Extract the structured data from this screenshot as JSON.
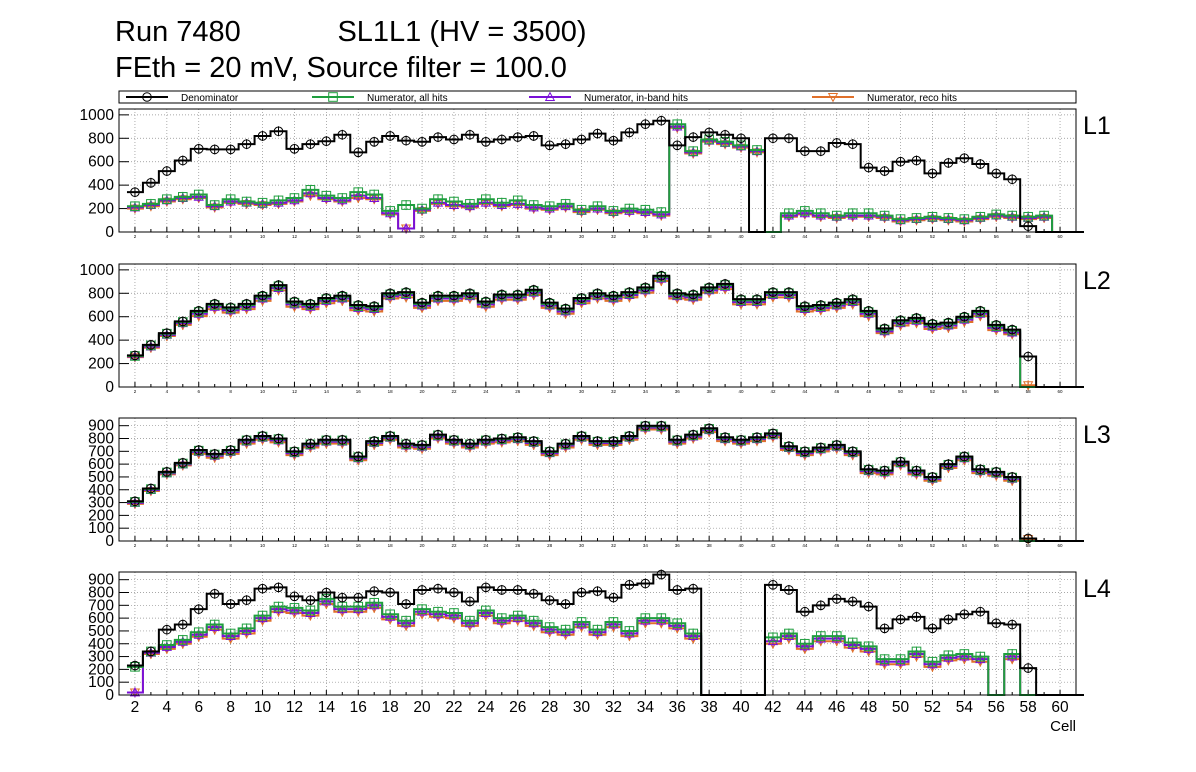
{
  "header": {
    "title_line1": "Run 7480            SL1L1 (HV = 3500)",
    "title_line2": "FEth = 20 mV, Source filter = 100.0"
  },
  "colors": {
    "denominator": "#000000",
    "all_hits": "#1f9e3e",
    "inband_hits": "#7a10d8",
    "reco_hits": "#e0702a"
  },
  "chart_data": {
    "type": "step-histogram",
    "xlabel": "Cell",
    "xlim": [
      1,
      61
    ],
    "x_major_ticks": [
      2,
      4,
      6,
      8,
      10,
      12,
      14,
      16,
      18,
      20,
      22,
      24,
      26,
      28,
      30,
      32,
      34,
      36,
      38,
      40,
      42,
      44,
      46,
      48,
      50,
      52,
      54,
      56,
      58,
      60
    ],
    "legend": [
      {
        "name": "Denominator",
        "marker": "circle"
      },
      {
        "name": "Numerator, all hits",
        "marker": "square"
      },
      {
        "name": "Numerator, in-band hits",
        "marker": "triangle-up"
      },
      {
        "name": "Numerator, reco hits",
        "marker": "triangle-down"
      }
    ],
    "panels": [
      {
        "label": "L1",
        "ylim": [
          0,
          1050
        ],
        "yticks": [
          0,
          200,
          400,
          600,
          800,
          1000
        ],
        "series": {
          "denominator": [
            340,
            420,
            520,
            610,
            710,
            705,
            705,
            750,
            820,
            860,
            710,
            750,
            775,
            830,
            680,
            770,
            820,
            780,
            770,
            810,
            790,
            830,
            770,
            790,
            810,
            820,
            740,
            750,
            790,
            840,
            780,
            850,
            920,
            950,
            740,
            810,
            850,
            830,
            800,
            0,
            800,
            800,
            690,
            690,
            760,
            750,
            550,
            520,
            600,
            610,
            500,
            590,
            630,
            580,
            500,
            450,
            50,
            0,
            0,
            0
          ],
          "all_hits": [
            220,
            240,
            280,
            300,
            320,
            230,
            280,
            260,
            250,
            270,
            290,
            360,
            310,
            290,
            340,
            320,
            180,
            230,
            200,
            280,
            260,
            240,
            280,
            250,
            270,
            230,
            220,
            240,
            190,
            220,
            180,
            200,
            190,
            170,
            920,
            690,
            790,
            770,
            740,
            700,
            0,
            160,
            180,
            160,
            140,
            160,
            160,
            140,
            110,
            120,
            130,
            120,
            110,
            130,
            150,
            140,
            130,
            140,
            0,
            0
          ],
          "inband_hits": [
            210,
            230,
            270,
            290,
            300,
            220,
            260,
            250,
            240,
            250,
            270,
            330,
            290,
            270,
            310,
            290,
            160,
            30,
            190,
            250,
            230,
            220,
            250,
            230,
            240,
            210,
            200,
            220,
            180,
            200,
            170,
            180,
            170,
            150,
            900,
            680,
            780,
            760,
            730,
            690,
            0,
            140,
            160,
            140,
            130,
            140,
            140,
            130,
            100,
            110,
            120,
            110,
            100,
            120,
            140,
            130,
            120,
            130,
            0,
            0
          ],
          "reco_hits": [
            200,
            220,
            260,
            280,
            290,
            210,
            250,
            240,
            230,
            240,
            260,
            310,
            280,
            260,
            290,
            280,
            150,
            30,
            180,
            240,
            220,
            210,
            240,
            220,
            230,
            200,
            190,
            210,
            170,
            190,
            160,
            170,
            160,
            140,
            890,
            670,
            770,
            750,
            720,
            680,
            0,
            130,
            150,
            130,
            120,
            130,
            130,
            120,
            90,
            100,
            110,
            100,
            90,
            110,
            130,
            120,
            110,
            120,
            0,
            0
          ]
        }
      },
      {
        "label": "L2",
        "ylim": [
          0,
          1050
        ],
        "yticks": [
          0,
          200,
          400,
          600,
          800,
          1000
        ],
        "series": {
          "denominator": [
            270,
            360,
            460,
            560,
            650,
            710,
            680,
            710,
            780,
            870,
            730,
            710,
            760,
            780,
            700,
            690,
            800,
            810,
            720,
            780,
            780,
            800,
            730,
            790,
            790,
            830,
            720,
            670,
            760,
            800,
            780,
            810,
            850,
            950,
            800,
            790,
            850,
            880,
            750,
            750,
            810,
            810,
            690,
            700,
            720,
            750,
            650,
            500,
            570,
            590,
            540,
            550,
            600,
            650,
            530,
            490,
            260,
            0,
            0,
            0
          ],
          "all_hits": [
            265,
            355,
            455,
            555,
            640,
            700,
            670,
            700,
            770,
            860,
            720,
            700,
            750,
            770,
            690,
            680,
            790,
            800,
            710,
            770,
            770,
            790,
            720,
            780,
            780,
            820,
            710,
            660,
            750,
            790,
            770,
            800,
            840,
            940,
            790,
            780,
            840,
            870,
            740,
            740,
            800,
            800,
            680,
            690,
            710,
            740,
            640,
            490,
            560,
            580,
            530,
            540,
            590,
            640,
            520,
            480,
            0,
            0,
            0,
            0
          ],
          "inband_hits": [
            260,
            345,
            445,
            545,
            625,
            685,
            655,
            685,
            755,
            845,
            705,
            685,
            735,
            755,
            675,
            665,
            775,
            785,
            695,
            755,
            755,
            775,
            705,
            765,
            765,
            805,
            695,
            645,
            735,
            775,
            755,
            785,
            825,
            925,
            775,
            765,
            825,
            855,
            725,
            725,
            785,
            785,
            665,
            675,
            695,
            725,
            625,
            475,
            545,
            565,
            515,
            525,
            575,
            625,
            505,
            465,
            0,
            0,
            0,
            0
          ],
          "reco_hits": [
            255,
            335,
            435,
            530,
            605,
            665,
            635,
            665,
            735,
            825,
            685,
            665,
            715,
            735,
            655,
            645,
            755,
            765,
            675,
            735,
            735,
            755,
            685,
            745,
            745,
            785,
            675,
            625,
            715,
            755,
            735,
            765,
            805,
            905,
            755,
            745,
            805,
            835,
            705,
            705,
            765,
            765,
            645,
            655,
            675,
            705,
            605,
            460,
            525,
            545,
            495,
            505,
            555,
            605,
            485,
            450,
            15,
            0,
            0,
            0
          ]
        }
      },
      {
        "label": "L3",
        "ylim": [
          0,
          960
        ],
        "yticks": [
          0,
          100,
          200,
          300,
          400,
          500,
          600,
          700,
          800,
          900
        ],
        "series": {
          "denominator": [
            310,
            410,
            540,
            610,
            710,
            680,
            710,
            790,
            820,
            800,
            700,
            760,
            790,
            790,
            660,
            780,
            820,
            760,
            750,
            830,
            790,
            760,
            790,
            800,
            810,
            780,
            700,
            760,
            820,
            780,
            780,
            820,
            900,
            900,
            790,
            830,
            880,
            810,
            790,
            810,
            840,
            740,
            700,
            730,
            750,
            700,
            560,
            550,
            620,
            550,
            500,
            600,
            660,
            560,
            540,
            500,
            20,
            0,
            0,
            0
          ],
          "all_hits": [
            305,
            405,
            535,
            605,
            705,
            675,
            705,
            785,
            815,
            795,
            695,
            755,
            785,
            785,
            655,
            775,
            815,
            755,
            745,
            825,
            785,
            755,
            785,
            795,
            805,
            775,
            695,
            755,
            815,
            775,
            775,
            815,
            895,
            895,
            785,
            825,
            875,
            805,
            785,
            805,
            835,
            735,
            695,
            725,
            745,
            695,
            555,
            545,
            615,
            545,
            495,
            595,
            655,
            555,
            535,
            495,
            0,
            0,
            0,
            0
          ],
          "inband_hits": [
            298,
            398,
            528,
            598,
            695,
            665,
            695,
            775,
            805,
            785,
            685,
            745,
            775,
            775,
            645,
            765,
            805,
            745,
            735,
            815,
            775,
            745,
            775,
            785,
            795,
            765,
            685,
            745,
            805,
            765,
            765,
            805,
            885,
            885,
            775,
            815,
            865,
            795,
            775,
            795,
            825,
            725,
            685,
            715,
            735,
            685,
            545,
            535,
            605,
            535,
            485,
            585,
            645,
            545,
            525,
            485,
            0,
            0,
            0,
            0
          ],
          "reco_hits": [
            290,
            390,
            520,
            590,
            680,
            650,
            680,
            760,
            790,
            770,
            670,
            730,
            760,
            760,
            630,
            750,
            790,
            730,
            720,
            800,
            760,
            730,
            760,
            770,
            780,
            750,
            670,
            730,
            790,
            750,
            750,
            790,
            870,
            870,
            760,
            800,
            850,
            780,
            760,
            780,
            810,
            710,
            670,
            700,
            720,
            670,
            530,
            520,
            590,
            520,
            470,
            570,
            630,
            530,
            510,
            470,
            15,
            0,
            0,
            0
          ]
        }
      },
      {
        "label": "L4",
        "ylim": [
          0,
          960
        ],
        "yticks": [
          0,
          100,
          200,
          300,
          400,
          500,
          600,
          700,
          800,
          900
        ],
        "series": {
          "denominator": [
            230,
            340,
            510,
            550,
            670,
            790,
            710,
            740,
            830,
            840,
            770,
            740,
            800,
            760,
            760,
            810,
            800,
            710,
            820,
            830,
            800,
            730,
            840,
            820,
            820,
            790,
            740,
            710,
            800,
            810,
            760,
            860,
            870,
            940,
            820,
            830,
            0,
            0,
            0,
            0,
            860,
            820,
            650,
            700,
            750,
            730,
            690,
            520,
            590,
            610,
            520,
            590,
            630,
            650,
            560,
            550,
            210,
            0,
            0,
            0
          ],
          "all_hits": [
            220,
            340,
            390,
            430,
            490,
            550,
            480,
            520,
            620,
            690,
            680,
            660,
            750,
            690,
            690,
            720,
            630,
            580,
            670,
            650,
            640,
            580,
            660,
            600,
            620,
            580,
            530,
            510,
            570,
            510,
            570,
            500,
            600,
            600,
            560,
            480,
            0,
            0,
            0,
            0,
            450,
            480,
            400,
            460,
            460,
            410,
            380,
            280,
            280,
            340,
            260,
            310,
            320,
            300,
            0,
            320,
            0,
            0,
            0,
            0
          ],
          "inband_hits": [
            20,
            330,
            375,
            415,
            470,
            530,
            460,
            500,
            600,
            670,
            660,
            640,
            730,
            670,
            670,
            700,
            610,
            560,
            650,
            630,
            620,
            560,
            640,
            580,
            600,
            560,
            510,
            490,
            550,
            490,
            550,
            480,
            580,
            580,
            540,
            460,
            0,
            0,
            0,
            0,
            420,
            460,
            380,
            440,
            440,
            390,
            360,
            260,
            260,
            320,
            240,
            290,
            300,
            280,
            0,
            300,
            0,
            0,
            0,
            0
          ],
          "reco_hits": [
            20,
            320,
            360,
            400,
            455,
            510,
            440,
            480,
            580,
            650,
            640,
            620,
            710,
            650,
            650,
            680,
            590,
            540,
            630,
            610,
            600,
            540,
            620,
            560,
            580,
            540,
            490,
            470,
            530,
            470,
            530,
            460,
            560,
            560,
            520,
            440,
            0,
            0,
            0,
            0,
            400,
            440,
            360,
            420,
            420,
            370,
            340,
            240,
            240,
            300,
            220,
            270,
            280,
            260,
            0,
            280,
            0,
            0,
            0,
            0
          ]
        }
      }
    ]
  }
}
